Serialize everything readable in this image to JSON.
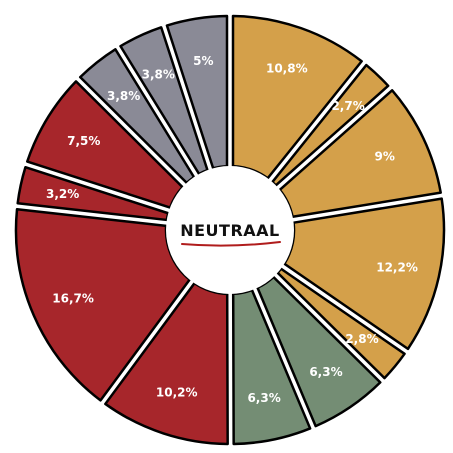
{
  "chart_data": {
    "type": "pie",
    "center_label": "NEUTRAAL",
    "legend": "none",
    "slices": [
      {
        "label": "10,8%",
        "value": 10.8,
        "color": "#d4a04a"
      },
      {
        "label": "2,7%",
        "value": 2.7,
        "color": "#d4a04a"
      },
      {
        "label": "9%",
        "value": 9.0,
        "color": "#d4a04a"
      },
      {
        "label": "12,2%",
        "value": 12.2,
        "color": "#d4a04a"
      },
      {
        "label": "2,8%",
        "value": 2.8,
        "color": "#d4a04a"
      },
      {
        "label": "6,3%",
        "value": 6.3,
        "color": "#748d74"
      },
      {
        "label": "6,3%",
        "value": 6.3,
        "color": "#748d74"
      },
      {
        "label": "10,2%",
        "value": 10.2,
        "color": "#a7262b"
      },
      {
        "label": "16,7%",
        "value": 16.7,
        "color": "#a7262b"
      },
      {
        "label": "3,2%",
        "value": 3.2,
        "color": "#a7262b"
      },
      {
        "label": "7,5%",
        "value": 7.5,
        "color": "#a7262b"
      },
      {
        "label": "3,8%",
        "value": 3.8,
        "color": "#8a8a96"
      },
      {
        "label": "3,8%",
        "value": 3.8,
        "color": "#8a8a96"
      },
      {
        "label": "5%",
        "value": 5.0,
        "color": "#8a8a96"
      }
    ]
  }
}
